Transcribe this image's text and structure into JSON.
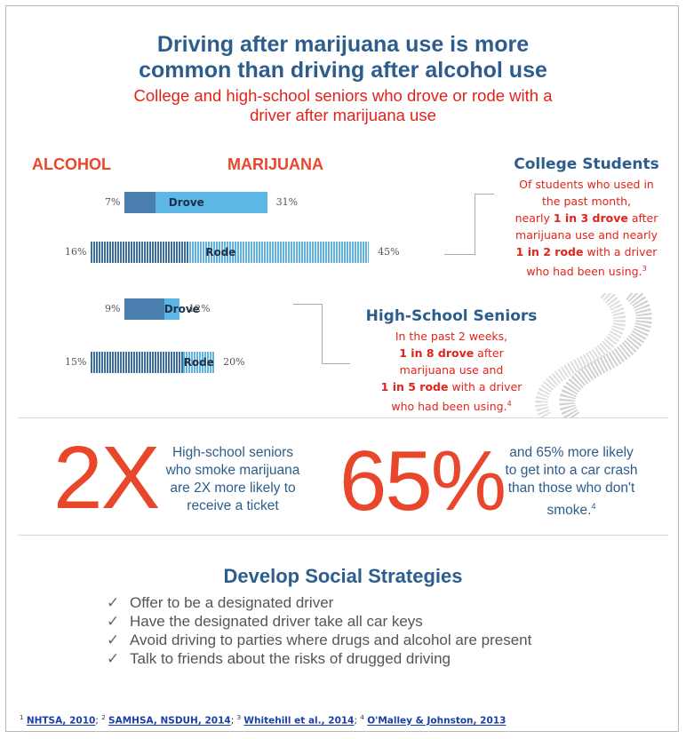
{
  "header": {
    "title_line1": "Driving after marijuana use is more",
    "title_line2": "common than driving after alcohol use",
    "subtitle_line1": "College and high-school seniors who drove or rode with a",
    "subtitle_line2": "driver after marijuana use"
  },
  "columns": {
    "alcohol": "ALCOHOL",
    "marijuana": "MARIJUANA"
  },
  "chart_data": {
    "type": "bar",
    "groups": [
      {
        "name": "College Students",
        "rows": [
          {
            "label": "Drove",
            "alcohol": 7,
            "marijuana": 31,
            "alcohol_text": "7%",
            "marijuana_text": "31%"
          },
          {
            "label": "Rode",
            "alcohol": 16,
            "marijuana": 45,
            "alcohol_text": "16%",
            "marijuana_text": "45%"
          }
        ]
      },
      {
        "name": "High-School Seniors",
        "rows": [
          {
            "label": "Drove",
            "alcohol": 9,
            "marijuana": 12,
            "alcohol_text": "9%",
            "marijuana_text": "12%"
          },
          {
            "label": "Rode",
            "alcohol": 15,
            "marijuana": 20,
            "alcohol_text": "15%",
            "marijuana_text": "20%"
          }
        ]
      }
    ]
  },
  "college": {
    "title": "College Students",
    "l1": "Of students who used in",
    "l2": "the past month,",
    "l3a": "nearly ",
    "l3b": "1 in 3 drove",
    "l3c": " after",
    "l4": "marijuana use and nearly",
    "l5a": "1 in 2 rode",
    "l5b": " with a driver",
    "l6": "who had been using.",
    "l6sup": "3"
  },
  "highschool": {
    "title": "High-School Seniors",
    "l1": "In the past 2 weeks,",
    "l2a": "1 in 8 drove",
    "l2b": " after",
    "l3": "marijuana use and",
    "l4a": "1 in 5 rode",
    "l4b": " with a driver",
    "l5": "who had been using.",
    "l5sup": "4"
  },
  "stats": {
    "twox_big": "2X",
    "twox_l1": "High-school seniors",
    "twox_l2": "who smoke marijuana",
    "twox_l3": "are 2X more likely to",
    "twox_l4": "receive a ticket",
    "pct_big": "65%",
    "pct_l1": "and 65% more likely",
    "pct_l2": "to get into a car crash",
    "pct_l3": "than those who don't",
    "pct_l4": "smoke.",
    "pct_sup": "4"
  },
  "strategies": {
    "title": "Develop Social Strategies",
    "check": "✓",
    "items": [
      "Offer to be a designated driver",
      "Have the designated driver take all car keys",
      "Avoid driving to parties where drugs and alcohol are present",
      "Talk to friends about the risks of drugged driving"
    ]
  },
  "references": {
    "s1": "1",
    "r1": "NHTSA, 2010",
    "s2": "2",
    "r2": "SAMHSA, NSDUH, 2014",
    "s3": "3",
    "r3": "Whitehill et al., 2014",
    "s4": "4",
    "r4": "O'Malley & Johnston, 2013",
    "sep": "; "
  }
}
